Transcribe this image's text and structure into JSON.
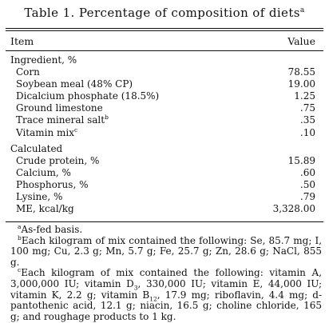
{
  "title": {
    "text": "Table 1. Percentage of composition of diets",
    "sup": "a"
  },
  "columns": {
    "item": "Item",
    "value": "Value"
  },
  "sections": [
    {
      "heading": "Ingredient, %",
      "rows": [
        {
          "label": "Corn",
          "sup": "",
          "value": "78.55"
        },
        {
          "label": "Soybean meal (48% CP)",
          "sup": "",
          "value": "19.00"
        },
        {
          "label": "Dicalcium phosphate (18.5%)",
          "sup": "",
          "value": "1.25"
        },
        {
          "label": "Ground limestone",
          "sup": "",
          "value": ".75"
        },
        {
          "label": "Trace mineral salt",
          "sup": "b",
          "value": ".35"
        },
        {
          "label": "Vitamin mix",
          "sup": "c",
          "value": ".10"
        }
      ]
    },
    {
      "heading": "Calculated",
      "rows": [
        {
          "label": "Crude protein, %",
          "sup": "",
          "value": "15.89"
        },
        {
          "label": "Calcium, %",
          "sup": "",
          "value": ".60"
        },
        {
          "label": "Phosphorus, %",
          "sup": "",
          "value": ".50"
        },
        {
          "label": "Lysine, %",
          "sup": "",
          "value": ".79"
        },
        {
          "label": "ME, kcal/kg",
          "sup": "",
          "value": "3,328.00"
        }
      ]
    }
  ],
  "footnotes": {
    "a": {
      "marker": "a",
      "text": "As-fed basis."
    },
    "b": {
      "marker": "b",
      "text": "Each kilogram of mix contained the following: Se, 85.7 mg; I, 100 mg; Cu, 2.3 g; Mn, 5.7 g; Fe, 25.7 g; Zn, 28.6 g; NaCl, 855 g."
    },
    "c": {
      "marker": "c",
      "part1": "Each kilogram of mix contained the following: vitamin A, 3,000,000 IU; vitamin D",
      "sub1": "3",
      "part2": ", 330,000 IU; vitamin E, 44,000 IU; vitamin K, 2.2 g; vitamin B",
      "sub2": "12",
      "part3": ", 17.9 mg; riboflavin, 4.4 mg; d-pantothenic acid, 12.1 g; niacin, 16.5 g; choline chloride, 165 g; and roughage products to 1 kg."
    }
  }
}
